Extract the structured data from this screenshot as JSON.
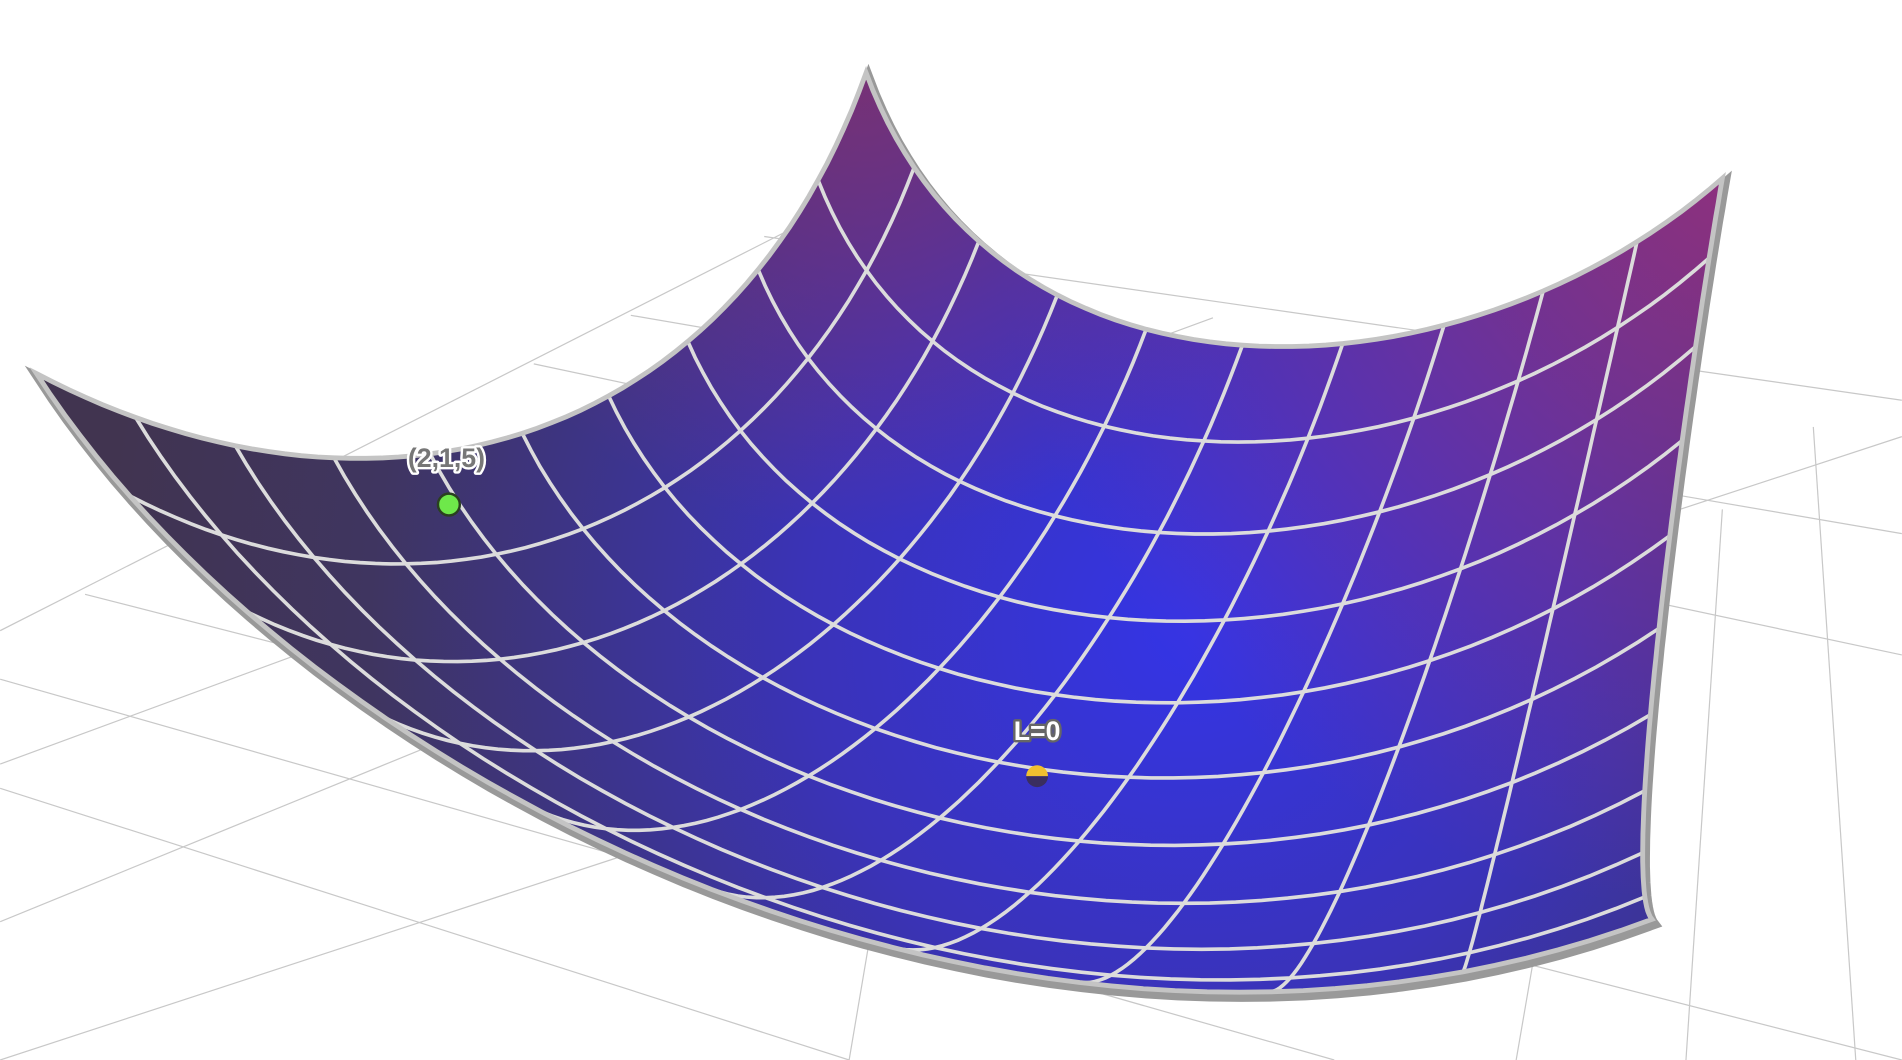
{
  "points": [
    {
      "label": "(2,1,5)"
    },
    {
      "label": "L=0"
    }
  ]
}
